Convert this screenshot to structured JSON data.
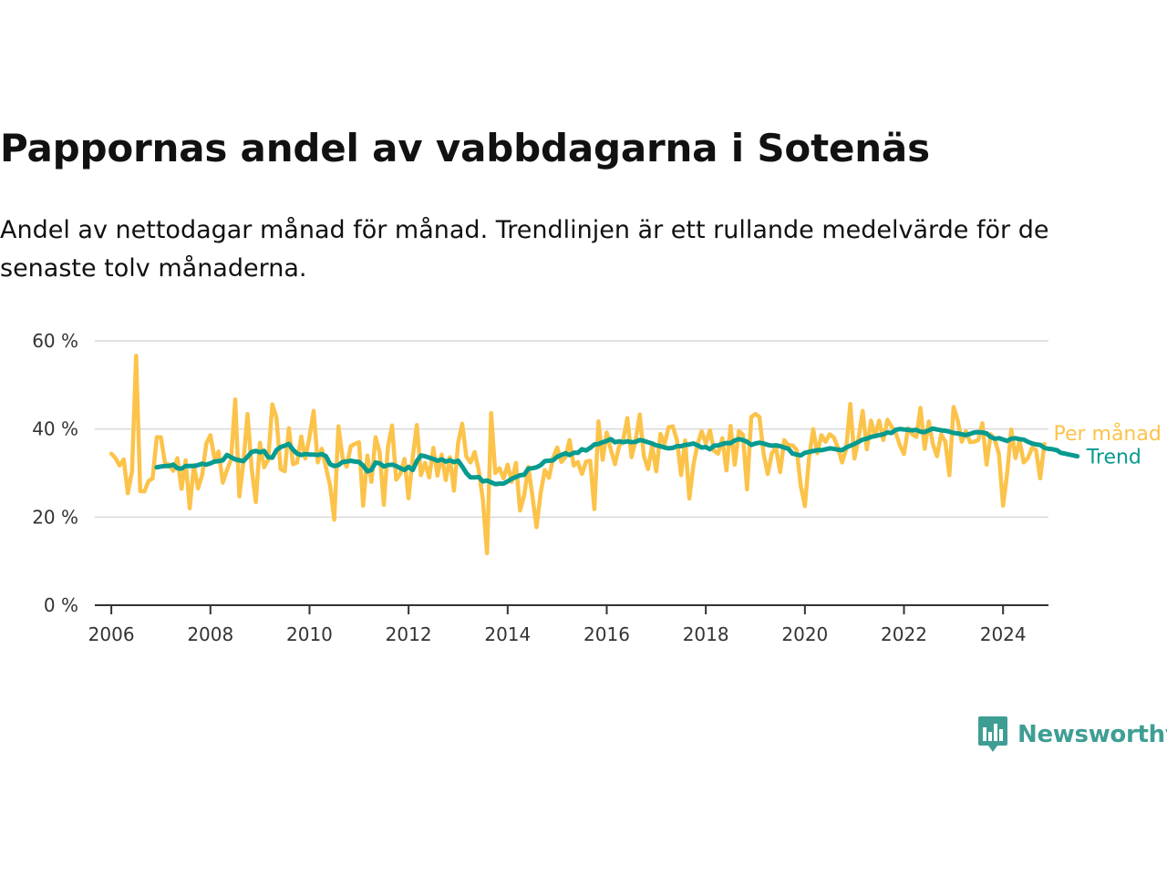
{
  "header": {
    "title": "Pappornas andel av vabbdagarna i Sotenäs",
    "subtitle": "Andel av nettodagar månad för månad. Trendlinjen är ett rullande medelvärde för de senaste tolv månaderna."
  },
  "brand": {
    "name": "Newsworthy",
    "icon": "newsworthy-bar-chart-icon",
    "color": "#3f9e94"
  },
  "chart_data": {
    "type": "line",
    "grid": true,
    "legend": "direct labels at line ends",
    "x_range": [
      "2005-09",
      "2024-12"
    ],
    "ylim": [
      0,
      60
    ],
    "y_ticks": [
      {
        "value": 0,
        "label": "0 %"
      },
      {
        "value": 20,
        "label": "20 %"
      },
      {
        "value": 40,
        "label": "40 %"
      },
      {
        "value": 60,
        "label": "60 %"
      }
    ],
    "x_ticks": [
      {
        "value": "2006-01",
        "label": "2006"
      },
      {
        "value": "2008-01",
        "label": "2008"
      },
      {
        "value": "2010-01",
        "label": "2010"
      },
      {
        "value": "2012-01",
        "label": "2012"
      },
      {
        "value": "2014-01",
        "label": "2014"
      },
      {
        "value": "2016-01",
        "label": "2016"
      },
      {
        "value": "2018-01",
        "label": "2018"
      },
      {
        "value": "2020-01",
        "label": "2020"
      },
      {
        "value": "2022-01",
        "label": "2022"
      },
      {
        "value": "2024-01",
        "label": "2024"
      }
    ],
    "series": [
      {
        "name": "Per månad",
        "color": "#fcc34a",
        "start": "2006-01",
        "values": [
          34.4,
          33.4,
          31.7,
          33.1,
          25.4,
          30.4,
          56.6,
          25.9,
          25.8,
          28.2,
          28.8,
          38.1,
          38.1,
          32.2,
          31.9,
          30.5,
          33.4,
          26.4,
          32.9,
          22.0,
          31.8,
          26.5,
          29.5,
          36.7,
          38.6,
          33.2,
          34.9,
          27.8,
          30.7,
          33.0,
          46.7,
          24.7,
          32.5,
          43.4,
          30.9,
          23.4,
          36.9,
          31.3,
          33.0,
          45.6,
          42.6,
          30.9,
          30.4,
          40.2,
          32.0,
          32.4,
          38.3,
          33.3,
          38.3,
          44.1,
          32.4,
          35.5,
          31.2,
          27.1,
          19.4,
          40.6,
          33.5,
          31.4,
          36.1,
          36.6,
          37.0,
          22.6,
          34.0,
          28.0,
          38.1,
          34.8,
          22.8,
          35.9,
          40.8,
          28.5,
          29.8,
          33.2,
          24.3,
          33.6,
          40.9,
          29.5,
          32.3,
          29.0,
          35.7,
          29.4,
          34.2,
          28.4,
          33.6,
          26.0,
          36.9,
          41.2,
          33.7,
          32.4,
          34.8,
          30.6,
          24.0,
          11.8,
          43.6,
          30.0,
          31.1,
          28.8,
          31.9,
          28.0,
          32.3,
          21.5,
          24.9,
          31.4,
          24.7,
          17.7,
          25.5,
          30.7,
          28.9,
          33.4,
          35.8,
          32.5,
          33.6,
          37.5,
          31.7,
          32.5,
          29.8,
          32.6,
          32.8,
          21.8,
          41.7,
          33.0,
          39.2,
          35.3,
          32.0,
          36.1,
          37.6,
          42.5,
          33.6,
          37.4,
          43.3,
          33.9,
          30.9,
          36.2,
          30.4,
          38.9,
          36.6,
          40.4,
          40.6,
          37.5,
          29.5,
          37.4,
          24.2,
          31.9,
          36.5,
          39.5,
          36.7,
          39.7,
          35.0,
          34.4,
          37.9,
          30.6,
          40.7,
          31.9,
          39.5,
          38.7,
          26.3,
          42.7,
          43.4,
          42.7,
          34.3,
          29.8,
          34.5,
          35.8,
          30.2,
          37.5,
          36.3,
          36.3,
          35.3,
          27.1,
          22.5,
          33.5,
          40.0,
          34.5,
          38.6,
          37.1,
          38.8,
          38.1,
          35.8,
          32.4,
          35.4,
          45.7,
          33.3,
          37.9,
          44.1,
          35.4,
          41.9,
          38.4,
          41.9,
          37.5,
          42.1,
          40.5,
          39.1,
          36.3,
          34.3,
          40.2,
          38.8,
          38.2,
          44.8,
          35.5,
          41.7,
          36.6,
          33.8,
          38.8,
          37.2,
          29.5,
          45.0,
          42.0,
          37.1,
          39.5,
          37.0,
          37.1,
          37.5,
          41.3,
          31.9,
          38.8,
          37.6,
          34.3,
          22.6,
          30.0,
          39.9,
          33.4,
          37.4,
          32.4,
          33.4,
          35.7,
          35.2,
          28.8,
          36.6
        ]
      },
      {
        "name": "Trend",
        "color": "#079b8f",
        "start": "2006-12",
        "values": [
          31.3,
          31.5,
          31.6,
          31.6,
          31.9,
          31.1,
          31.0,
          31.6,
          31.6,
          31.6,
          31.8,
          32.1,
          31.9,
          32.2,
          32.6,
          32.7,
          32.9,
          34.1,
          33.6,
          33.1,
          32.9,
          32.7,
          33.7,
          34.8,
          35.0,
          34.7,
          35.0,
          33.6,
          33.5,
          35.2,
          35.9,
          36.2,
          36.6,
          35.3,
          34.4,
          34.1,
          34.3,
          34.2,
          34.2,
          34.1,
          34.3,
          33.8,
          32.0,
          31.6,
          31.8,
          32.5,
          32.6,
          32.8,
          32.6,
          32.5,
          31.7,
          30.4,
          30.7,
          32.4,
          32.2,
          31.5,
          31.8,
          31.9,
          31.6,
          31.1,
          30.7,
          31.4,
          30.7,
          32.7,
          34.0,
          33.8,
          33.5,
          33.2,
          32.8,
          33.1,
          32.6,
          32.9,
          32.5,
          32.8,
          31.5,
          30.0,
          29.0,
          29.0,
          29.1,
          28.1,
          28.3,
          27.9,
          27.5,
          27.6,
          27.6,
          28.1,
          28.7,
          29.1,
          29.5,
          29.6,
          31.0,
          31.1,
          31.3,
          31.8,
          32.7,
          32.8,
          32.9,
          33.7,
          34.1,
          34.5,
          34.1,
          34.6,
          34.6,
          35.4,
          35.1,
          35.7,
          36.5,
          36.6,
          37.0,
          37.3,
          37.7,
          37.0,
          37.2,
          37.0,
          37.2,
          37.0,
          37.1,
          37.5,
          37.3,
          37.0,
          36.7,
          36.3,
          36.1,
          35.8,
          35.6,
          35.7,
          36.1,
          36.1,
          36.4,
          36.5,
          36.7,
          36.3,
          35.8,
          35.9,
          35.4,
          36.2,
          36.3,
          36.6,
          36.8,
          36.8,
          37.4,
          37.7,
          37.5,
          37.1,
          36.4,
          36.7,
          36.9,
          36.7,
          36.4,
          36.2,
          36.3,
          36.1,
          35.8,
          35.5,
          34.4,
          34.2,
          34.0,
          34.6,
          34.8,
          35.0,
          35.2,
          35.2,
          35.4,
          35.6,
          35.5,
          35.3,
          35.2,
          35.8,
          36.2,
          36.6,
          37.1,
          37.6,
          37.8,
          38.2,
          38.4,
          38.6,
          38.8,
          39.2,
          39.1,
          39.8,
          40.0,
          39.9,
          39.8,
          39.7,
          39.8,
          39.4,
          39.3,
          39.7,
          40.1,
          39.9,
          39.7,
          39.6,
          39.4,
          39.1,
          39.0,
          38.8,
          38.6,
          38.9,
          39.2,
          39.3,
          39.2,
          39.0,
          38.2,
          37.8,
          37.9,
          37.6,
          37.3,
          37.8,
          37.9,
          37.7,
          37.6,
          37.1,
          36.7,
          36.5,
          36.4,
          35.7,
          35.5,
          35.4,
          35.2,
          34.6,
          34.4,
          34.2,
          34.0,
          33.8
        ]
      }
    ]
  }
}
